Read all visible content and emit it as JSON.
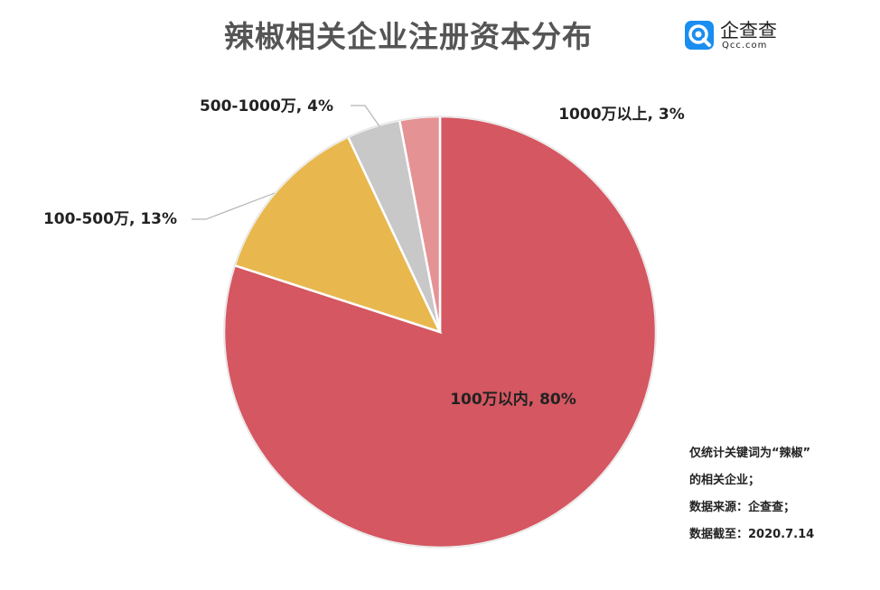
{
  "title": "辣椒相关企业注册资本分布",
  "brand": {
    "name_cn": "企查查",
    "name_en": "Qcc.com",
    "icon": "qcc-logo-icon",
    "color": "#1a8df0"
  },
  "notes": [
    "仅统计关键词为“辣椒”",
    "的相关企业；",
    "数据来源：企查查；",
    "数据截至：2020.7.14"
  ],
  "chart_data": {
    "type": "pie",
    "title": "辣椒相关企业注册资本分布",
    "start_angle_deg": 0,
    "direction": "clockwise",
    "slices": [
      {
        "name": "100万以内",
        "value": 80,
        "color": "#d45761",
        "label": "100万以内, 80%"
      },
      {
        "name": "100-500万",
        "value": 13,
        "color": "#e8b84f",
        "label": "100-500万, 13%"
      },
      {
        "name": "500-1000万",
        "value": 4,
        "color": "#c8c8c8",
        "label": "500-1000万, 4%"
      },
      {
        "name": "1000万以上",
        "value": 3,
        "color": "#e59295",
        "label": "1000万以上, 3%"
      }
    ]
  }
}
